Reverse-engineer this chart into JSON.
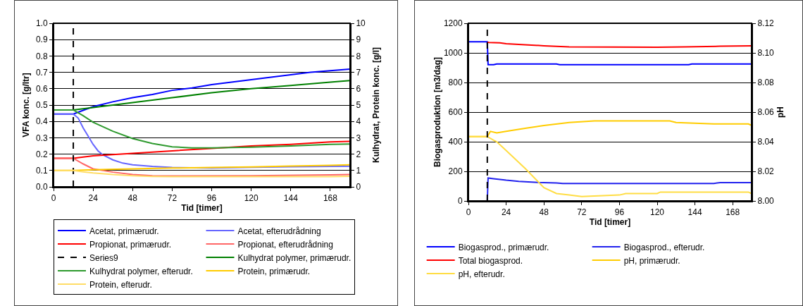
{
  "chart_data": [
    {
      "type": "line",
      "xlabel": "Tid [timer]",
      "ylabel": "VFA konc. [g/ltr]",
      "y2label": "Kulhydrat, Protein konc. [g/l]",
      "xlim": [
        0,
        180
      ],
      "xticks": [
        0,
        24,
        48,
        72,
        96,
        120,
        144,
        168
      ],
      "ylim": [
        0,
        1
      ],
      "yticks": [
        {
          "value": 0,
          "label": "0.0"
        },
        0.1,
        0.2,
        0.3,
        0.4,
        0.5,
        0.6,
        0.7,
        0.8,
        0.9,
        {
          "value": 1,
          "label": "1.0"
        }
      ],
      "y2lim": [
        0,
        10
      ],
      "y2ticks": [
        0,
        1,
        2,
        3,
        4,
        5,
        6,
        7,
        8,
        9,
        10
      ],
      "grid": "y",
      "legend": "bottom",
      "line_style": "solid",
      "series": [
        {
          "name": "Acetat, primærudr.",
          "color": "#0000ff",
          "x": [
            0,
            12,
            24,
            36,
            48,
            60,
            72,
            84,
            96,
            108,
            120,
            132,
            144,
            156,
            168,
            180
          ],
          "values": [
            0.445,
            0.445,
            0.49,
            0.52,
            0.545,
            0.565,
            0.59,
            0.605,
            0.625,
            0.64,
            0.655,
            0.67,
            0.685,
            0.7,
            0.71,
            0.72
          ]
        },
        {
          "name": "Acetat, efterudrådning",
          "color": "#6666ff",
          "x": [
            0,
            12,
            15,
            18,
            21,
            24,
            27,
            30,
            36,
            42,
            48,
            60,
            72,
            96,
            120,
            144,
            168,
            180
          ],
          "values": [
            0.445,
            0.445,
            0.42,
            0.36,
            0.31,
            0.26,
            0.22,
            0.195,
            0.165,
            0.145,
            0.135,
            0.125,
            0.118,
            0.115,
            0.12,
            0.123,
            0.125,
            0.126
          ]
        },
        {
          "name": "Propionat, primærudr.",
          "color": "#ff0000",
          "x": [
            0,
            12,
            24,
            48,
            72,
            96,
            120,
            144,
            168,
            180
          ],
          "values": [
            0.175,
            0.175,
            0.19,
            0.205,
            0.22,
            0.235,
            0.25,
            0.26,
            0.275,
            0.278
          ]
        },
        {
          "name": "Propionat, efterudrådning",
          "color": "#ff6666",
          "x": [
            0,
            12,
            18,
            24,
            36,
            48,
            60,
            72,
            120,
            168,
            180
          ],
          "values": [
            0.175,
            0.175,
            0.14,
            0.11,
            0.09,
            0.075,
            0.068,
            0.067,
            0.068,
            0.073,
            0.075
          ]
        },
        {
          "name": "Series9",
          "color": "#000000",
          "line_style": "dashed",
          "x": [
            12,
            12
          ],
          "values": [
            0,
            1
          ]
        },
        {
          "name": "Kulhydrat polymer, primærudr.",
          "color": "#008000",
          "axis": "y2",
          "x": [
            0,
            12,
            24,
            48,
            72,
            96,
            120,
            144,
            168,
            180
          ],
          "values": [
            4.7,
            4.7,
            4.85,
            5.15,
            5.45,
            5.75,
            6.0,
            6.2,
            6.4,
            6.5
          ]
        },
        {
          "name": "Kulhydrat polymer, efterudr.",
          "color": "#2e9a2e",
          "axis": "y2",
          "x": [
            0,
            12,
            18,
            24,
            36,
            48,
            60,
            72,
            84,
            96,
            120,
            144,
            168,
            180
          ],
          "values": [
            4.7,
            4.7,
            4.35,
            3.95,
            3.4,
            2.95,
            2.65,
            2.45,
            2.38,
            2.38,
            2.42,
            2.5,
            2.6,
            2.62
          ]
        },
        {
          "name": "Protein, primærudr.",
          "color": "#ffcc00",
          "axis": "y2",
          "x": [
            0,
            12,
            24,
            48,
            72,
            96,
            120,
            144,
            168,
            180
          ],
          "values": [
            1.0,
            1.0,
            1.05,
            1.1,
            1.15,
            1.18,
            1.22,
            1.27,
            1.32,
            1.35
          ]
        },
        {
          "name": "Protein, efterudr.",
          "color": "#ffdd66",
          "axis": "y2",
          "x": [
            0,
            12,
            18,
            24,
            36,
            48,
            60,
            72,
            120,
            144,
            168,
            180
          ],
          "values": [
            1.0,
            1.0,
            0.92,
            0.85,
            0.75,
            0.68,
            0.64,
            0.62,
            0.62,
            0.63,
            0.63,
            0.65
          ]
        }
      ]
    },
    {
      "type": "line",
      "xlabel": "Tid [timer]",
      "ylabel": "Biogasproduktion [m3/dag]",
      "y2label": "pH",
      "xlim": [
        0,
        180
      ],
      "xticks": [
        0,
        24,
        48,
        72,
        96,
        120,
        144,
        168
      ],
      "ylim": [
        0,
        1200
      ],
      "yticks": [
        0,
        200,
        400,
        600,
        800,
        1000,
        1200
      ],
      "y2lim": [
        8,
        8.12
      ],
      "y2ticks": [
        {
          "value": 8,
          "label": "8.00"
        },
        {
          "value": 8.02,
          "label": "8.02"
        },
        {
          "value": 8.04,
          "label": "8.04"
        },
        {
          "value": 8.06,
          "label": "8.06"
        },
        {
          "value": 8.08,
          "label": "8.08"
        },
        {
          "value": 8.1,
          "label": "8.10"
        },
        {
          "value": 8.12,
          "label": "8.12"
        }
      ],
      "grid": "y",
      "legend": "bottom",
      "line_style": "solid",
      "ref_lines": [
        {
          "axis": "x",
          "value": 12,
          "color": "#000000",
          "line_style": "dashed"
        }
      ],
      "series": [
        {
          "name": "Biogasprod., primærudr.",
          "color": "#0000ff",
          "x": [
            0,
            12,
            12.5,
            16,
            18,
            56,
            58,
            140,
            142,
            180
          ],
          "values": [
            1075,
            1075,
            920,
            920,
            925,
            925,
            920,
            920,
            925,
            925
          ]
        },
        {
          "name": "Biogasprod., efterudr.",
          "color": "#2222ee",
          "x": [
            12,
            12.5,
            16,
            20,
            24,
            32,
            44,
            56,
            60,
            156,
            160,
            180
          ],
          "values": [
            0,
            155,
            150,
            145,
            140,
            132,
            125,
            122,
            118,
            118,
            124,
            124
          ]
        },
        {
          "name": "Total biogasprod.",
          "color": "#ff0000",
          "x": [
            12,
            13,
            20,
            24,
            36,
            48,
            64,
            120,
            138,
            160,
            180
          ],
          "values": [
            1072,
            1070,
            1068,
            1062,
            1055,
            1048,
            1040,
            1038,
            1040,
            1045,
            1048
          ]
        },
        {
          "name": "pH, primærudr.",
          "color": "#ffcc00",
          "axis": "y2",
          "x": [
            0,
            12,
            14,
            18,
            24,
            36,
            48,
            64,
            80,
            128,
            132,
            156,
            178,
            180
          ],
          "values": [
            8.0435,
            8.0435,
            8.047,
            8.046,
            8.047,
            8.049,
            8.051,
            8.053,
            8.054,
            8.054,
            8.053,
            8.052,
            8.052,
            8.051
          ]
        },
        {
          "name": "pH, efterudr.",
          "color": "#ffdd44",
          "axis": "y2",
          "x": [
            0,
            12,
            16,
            18,
            24,
            36,
            48,
            56,
            64,
            72,
            96,
            100,
            120,
            122,
            178,
            180
          ],
          "values": [
            8.0435,
            8.0435,
            8.041,
            8.04,
            8.034,
            8.022,
            8.009,
            8.005,
            8.004,
            8.003,
            8.004,
            8.005,
            8.005,
            8.006,
            8.006,
            8.005
          ]
        }
      ]
    }
  ]
}
